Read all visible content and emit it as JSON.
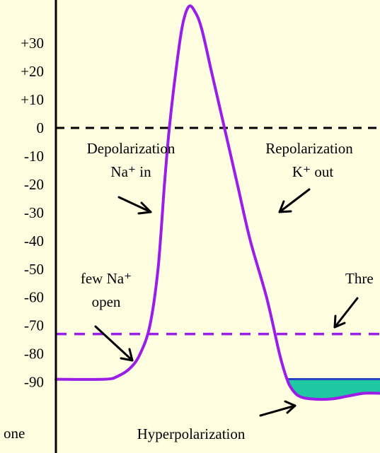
{
  "chart_data": {
    "type": "line",
    "title": "",
    "xlabel": "",
    "ylabel": "",
    "ylim": [
      -100,
      40
    ],
    "yticks": [
      "+30",
      "+20",
      "+10",
      "0",
      "-10",
      "-20",
      "-30",
      "-40",
      "-50",
      "-60",
      "-70",
      "-80",
      "-90"
    ],
    "ytick_values": [
      30,
      20,
      10,
      0,
      -10,
      -20,
      -30,
      -40,
      -50,
      -60,
      -70,
      -80,
      -90
    ],
    "corner_label": "one",
    "colors": {
      "trace": "#9b1de8",
      "zero_line": "#000000",
      "threshold_line": "#9b1de8",
      "hyperpolarization_fill": "#1ec8a0",
      "hyperpolarization_edge": "#2a44c8",
      "background": "#fffee0"
    },
    "reference_lines": [
      {
        "name": "zero",
        "value": 0,
        "style": "dashed"
      },
      {
        "name": "threshold",
        "value": -73,
        "style": "dashed"
      }
    ],
    "series": [
      {
        "points": [
          {
            "t": 0,
            "v": -89
          },
          {
            "t": 15,
            "v": -89
          },
          {
            "t": 19,
            "v": -88
          },
          {
            "t": 23,
            "v": -85
          },
          {
            "t": 26,
            "v": -80
          },
          {
            "t": 29,
            "v": -70
          },
          {
            "t": 31.5,
            "v": -50
          },
          {
            "t": 33.5,
            "v": -20
          },
          {
            "t": 35,
            "v": 0
          },
          {
            "t": 37,
            "v": 20
          },
          {
            "t": 39,
            "v": 36
          },
          {
            "t": 41,
            "v": 43
          },
          {
            "t": 43,
            "v": 41
          },
          {
            "t": 45,
            "v": 35
          },
          {
            "t": 48,
            "v": 20
          },
          {
            "t": 52,
            "v": 0
          },
          {
            "t": 56,
            "v": -20
          },
          {
            "t": 60,
            "v": -40
          },
          {
            "t": 65,
            "v": -60
          },
          {
            "t": 69,
            "v": -80
          },
          {
            "t": 71,
            "v": -88
          },
          {
            "t": 72.5,
            "v": -92
          },
          {
            "t": 75,
            "v": -95
          },
          {
            "t": 79,
            "v": -96
          },
          {
            "t": 85,
            "v": -96
          },
          {
            "t": 90,
            "v": -95
          },
          {
            "t": 95,
            "v": -94
          },
          {
            "t": 100,
            "v": -94
          }
        ]
      }
    ],
    "shaded_region": {
      "name": "hyperpolarization",
      "from_t": 71,
      "to_t": 100,
      "upper_v": -89
    },
    "annotations": {
      "depolarization": [
        "Depolarization",
        "Na⁺ in"
      ],
      "repolarization": [
        "Repolarization",
        "K⁺ out"
      ],
      "few_na": [
        "few Na⁺",
        "open"
      ],
      "threshold": "Thre",
      "hyperpolarization": "Hyperpolarization"
    }
  }
}
